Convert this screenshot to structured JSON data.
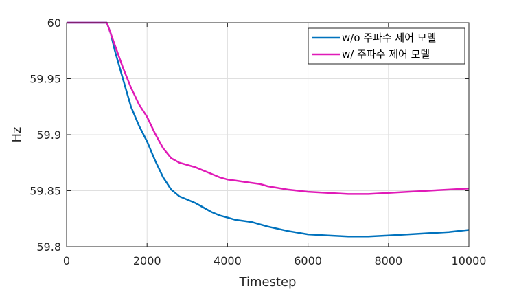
{
  "chart_data": {
    "type": "line",
    "xlabel": "Timestep",
    "ylabel": "Hz",
    "xlim": [
      0,
      10000
    ],
    "ylim": [
      59.8,
      60
    ],
    "xticks": [
      0,
      2000,
      4000,
      6000,
      8000,
      10000
    ],
    "xtick_labels": [
      "0",
      "2000",
      "4000",
      "6000",
      "8000",
      "10000"
    ],
    "yticks": [
      59.8,
      59.85,
      59.9,
      59.95,
      60
    ],
    "ytick_labels": [
      "59.8",
      "59.85",
      "59.9",
      "59.95",
      "60"
    ],
    "grid": true,
    "legend_position": "top-right",
    "series": [
      {
        "name": "w/o 주파수 제어 모델",
        "color": "#0072BD",
        "x": [
          0,
          1000,
          1100,
          1200,
          1400,
          1600,
          1800,
          2000,
          2200,
          2400,
          2600,
          2800,
          3000,
          3200,
          3400,
          3600,
          3800,
          4000,
          4200,
          4400,
          4600,
          4800,
          5000,
          5500,
          6000,
          6500,
          7000,
          7500,
          8000,
          8500,
          9000,
          9500,
          10000
        ],
        "y": [
          60.0,
          60.0,
          59.99,
          59.975,
          59.95,
          59.925,
          59.908,
          59.894,
          59.877,
          59.862,
          59.851,
          59.845,
          59.842,
          59.839,
          59.835,
          59.831,
          59.828,
          59.826,
          59.824,
          59.823,
          59.822,
          59.82,
          59.818,
          59.814,
          59.811,
          59.81,
          59.809,
          59.809,
          59.81,
          59.811,
          59.812,
          59.813,
          59.815
        ]
      },
      {
        "name": "w/ 주파수 제어 모델",
        "color": "#E01AB7",
        "x": [
          0,
          1000,
          1100,
          1200,
          1400,
          1600,
          1800,
          2000,
          2200,
          2400,
          2600,
          2800,
          3000,
          3200,
          3400,
          3600,
          3800,
          4000,
          4200,
          4400,
          4600,
          4800,
          5000,
          5500,
          6000,
          6500,
          7000,
          7500,
          8000,
          8500,
          9000,
          9500,
          10000
        ],
        "y": [
          60.0,
          60.0,
          59.99,
          59.98,
          59.96,
          59.942,
          59.927,
          59.916,
          59.901,
          59.888,
          59.879,
          59.875,
          59.873,
          59.871,
          59.868,
          59.865,
          59.862,
          59.86,
          59.859,
          59.858,
          59.857,
          59.856,
          59.854,
          59.851,
          59.849,
          59.848,
          59.847,
          59.847,
          59.848,
          59.849,
          59.85,
          59.851,
          59.852
        ]
      }
    ]
  }
}
